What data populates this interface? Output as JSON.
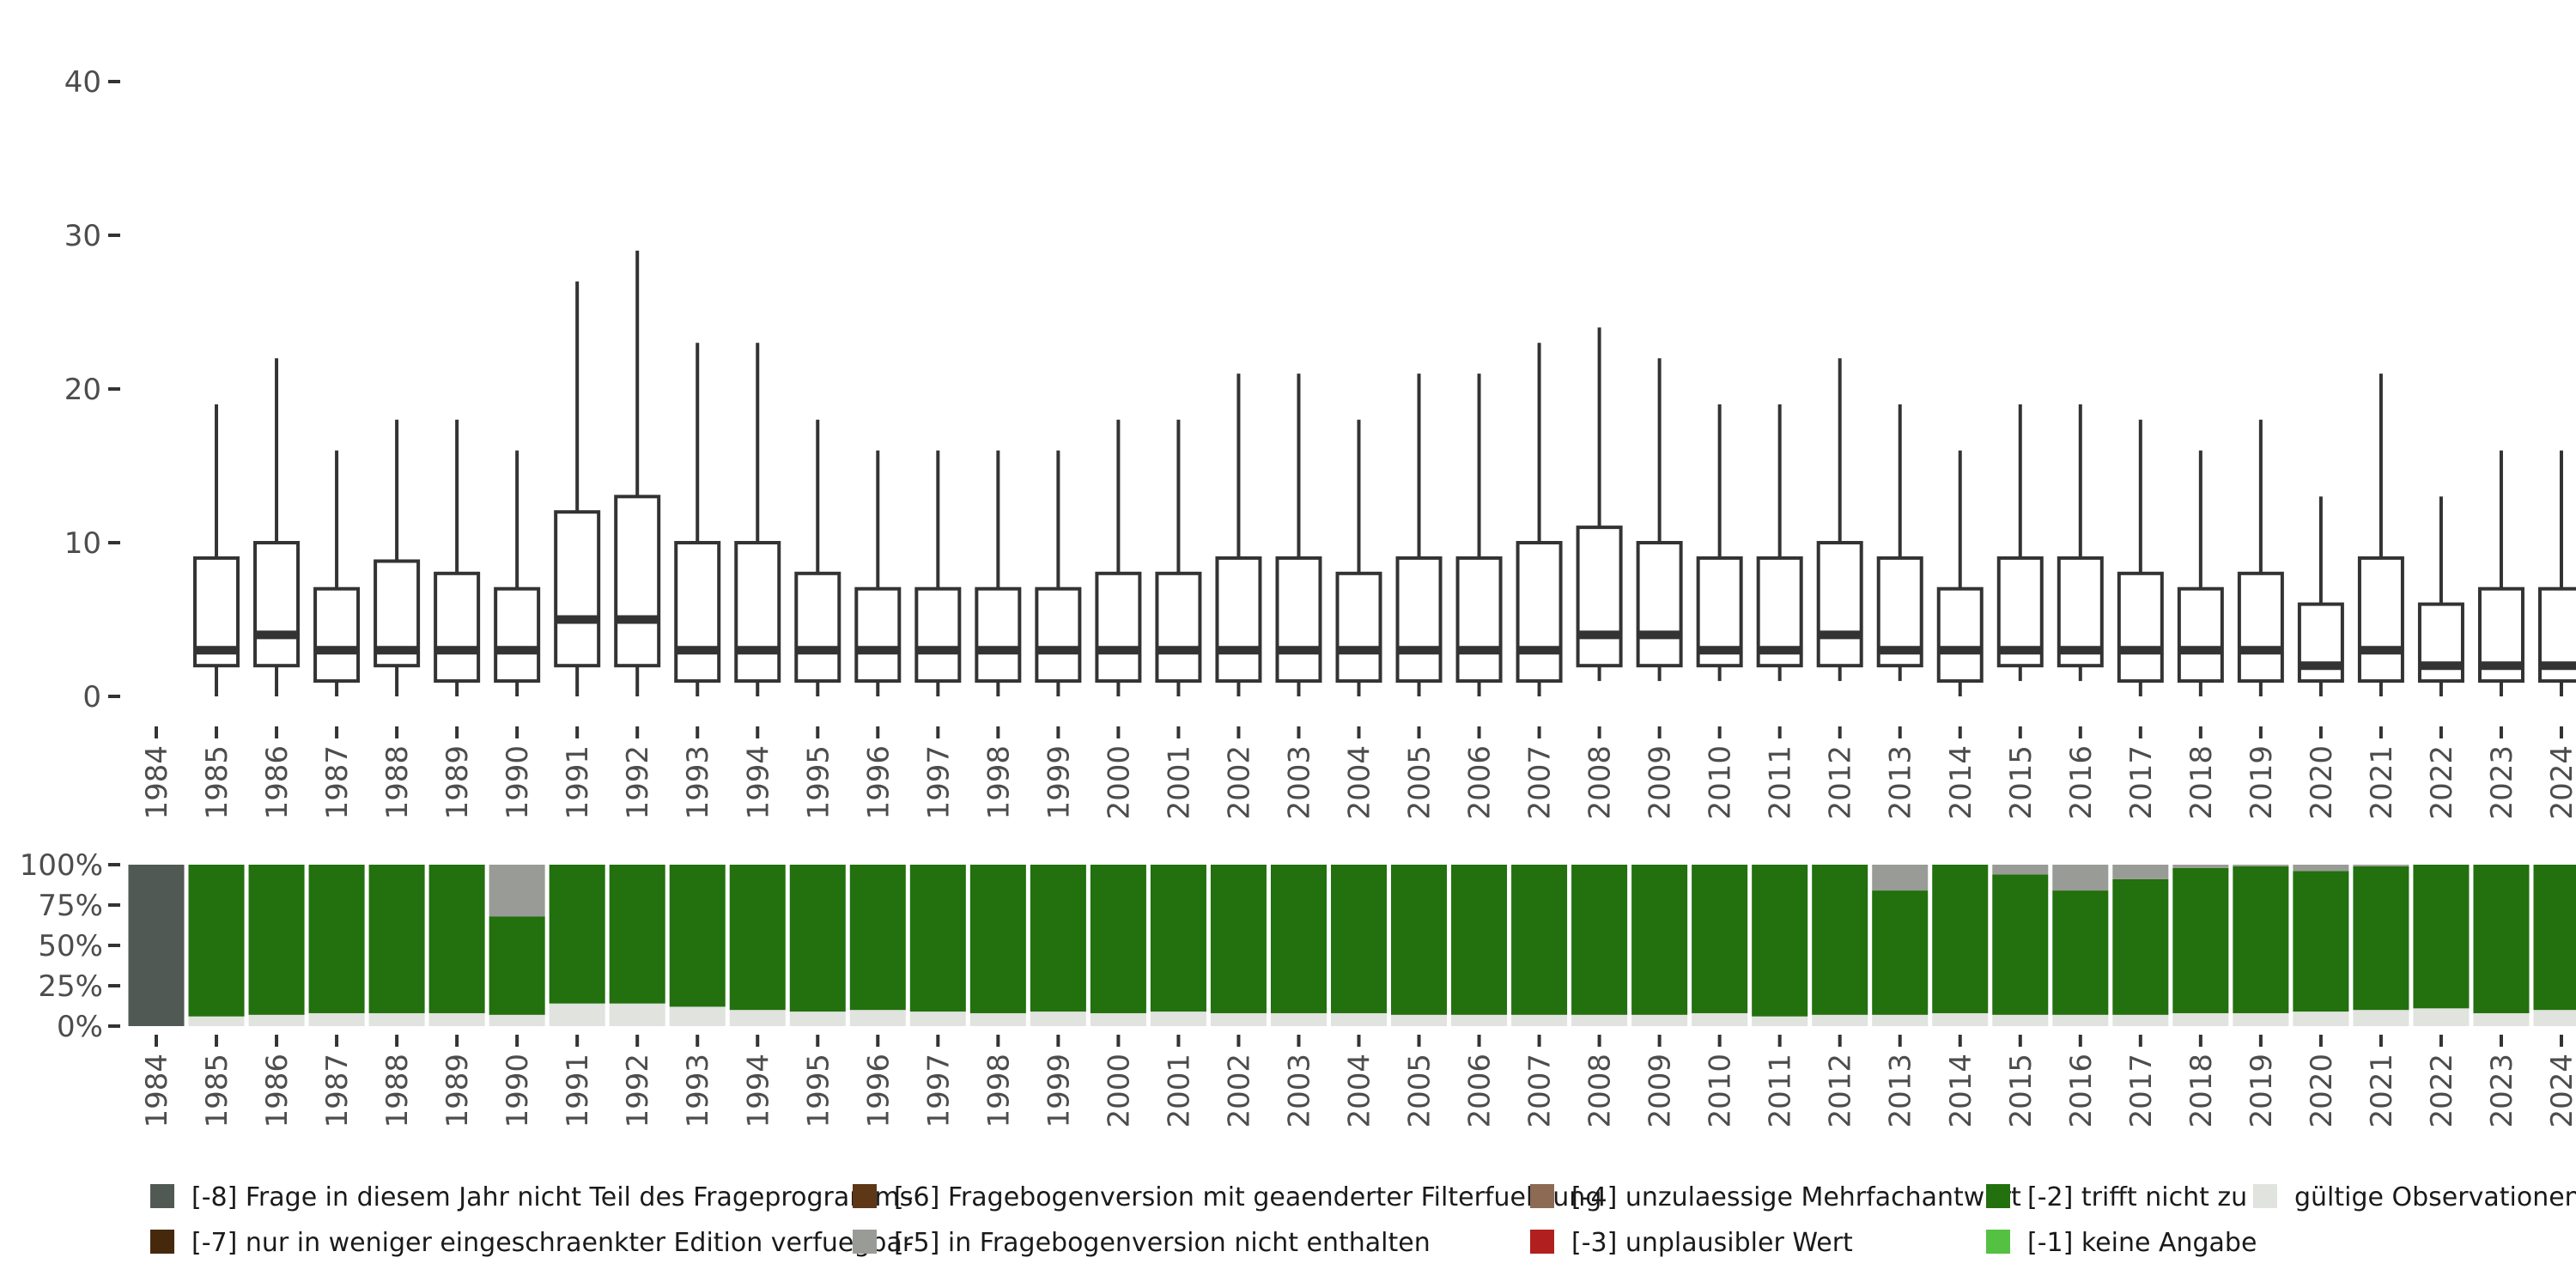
{
  "chart_data": [
    {
      "type": "boxplot",
      "ylim": [
        0,
        40
      ],
      "yticks": [
        0,
        10,
        20,
        30,
        40
      ],
      "categories": [
        "1984",
        "1985",
        "1986",
        "1987",
        "1988",
        "1989",
        "1990",
        "1991",
        "1992",
        "1993",
        "1994",
        "1995",
        "1996",
        "1997",
        "1998",
        "1999",
        "2000",
        "2001",
        "2002",
        "2003",
        "2004",
        "2005",
        "2006",
        "2007",
        "2008",
        "2009",
        "2010",
        "2011",
        "2012",
        "2013",
        "2014",
        "2015",
        "2016",
        "2017",
        "2018",
        "2019",
        "2020",
        "2021",
        "2022",
        "2023",
        "2024"
      ],
      "boxes": [
        null,
        {
          "min": 0,
          "q1": 2,
          "median": 3,
          "q3": 9,
          "max": 19
        },
        {
          "min": 0,
          "q1": 2,
          "median": 4,
          "q3": 10,
          "max": 22
        },
        {
          "min": 0,
          "q1": 1,
          "median": 3,
          "q3": 7,
          "max": 16
        },
        {
          "min": 0,
          "q1": 2,
          "median": 3,
          "q3": 8.8,
          "max": 18
        },
        {
          "min": 0,
          "q1": 1,
          "median": 3,
          "q3": 8,
          "max": 18
        },
        {
          "min": 0,
          "q1": 1,
          "median": 3,
          "q3": 7,
          "max": 16
        },
        {
          "min": 0,
          "q1": 2,
          "median": 5,
          "q3": 12,
          "max": 27
        },
        {
          "min": 0,
          "q1": 2,
          "median": 5,
          "q3": 13,
          "max": 29
        },
        {
          "min": 0,
          "q1": 1,
          "median": 3,
          "q3": 10,
          "max": 23
        },
        {
          "min": 0,
          "q1": 1,
          "median": 3,
          "q3": 10,
          "max": 23
        },
        {
          "min": 0,
          "q1": 1,
          "median": 3,
          "q3": 8,
          "max": 18
        },
        {
          "min": 0,
          "q1": 1,
          "median": 3,
          "q3": 7,
          "max": 16
        },
        {
          "min": 0,
          "q1": 1,
          "median": 3,
          "q3": 7,
          "max": 16
        },
        {
          "min": 0,
          "q1": 1,
          "median": 3,
          "q3": 7,
          "max": 16
        },
        {
          "min": 0,
          "q1": 1,
          "median": 3,
          "q3": 7,
          "max": 16
        },
        {
          "min": 0,
          "q1": 1,
          "median": 3,
          "q3": 8,
          "max": 18
        },
        {
          "min": 0,
          "q1": 1,
          "median": 3,
          "q3": 8,
          "max": 18
        },
        {
          "min": 0,
          "q1": 1,
          "median": 3,
          "q3": 9,
          "max": 21
        },
        {
          "min": 0,
          "q1": 1,
          "median": 3,
          "q3": 9,
          "max": 21
        },
        {
          "min": 0,
          "q1": 1,
          "median": 3,
          "q3": 8,
          "max": 18
        },
        {
          "min": 0,
          "q1": 1,
          "median": 3,
          "q3": 9,
          "max": 21
        },
        {
          "min": 0,
          "q1": 1,
          "median": 3,
          "q3": 9,
          "max": 21
        },
        {
          "min": 0,
          "q1": 1,
          "median": 3,
          "q3": 10,
          "max": 23
        },
        {
          "min": 1,
          "q1": 2,
          "median": 4,
          "q3": 11,
          "max": 24
        },
        {
          "min": 1,
          "q1": 2,
          "median": 4,
          "q3": 10,
          "max": 22
        },
        {
          "min": 1,
          "q1": 2,
          "median": 3,
          "q3": 9,
          "max": 19
        },
        {
          "min": 1,
          "q1": 2,
          "median": 3,
          "q3": 9,
          "max": 19
        },
        {
          "min": 1,
          "q1": 2,
          "median": 4,
          "q3": 10,
          "max": 22
        },
        {
          "min": 1,
          "q1": 2,
          "median": 3,
          "q3": 9,
          "max": 19
        },
        {
          "min": 0,
          "q1": 1,
          "median": 3,
          "q3": 7,
          "max": 16
        },
        {
          "min": 1,
          "q1": 2,
          "median": 3,
          "q3": 9,
          "max": 19
        },
        {
          "min": 1,
          "q1": 2,
          "median": 3,
          "q3": 9,
          "max": 19
        },
        {
          "min": 0,
          "q1": 1,
          "median": 3,
          "q3": 8,
          "max": 18
        },
        {
          "min": 0,
          "q1": 1,
          "median": 3,
          "q3": 7,
          "max": 16
        },
        {
          "min": 0,
          "q1": 1,
          "median": 3,
          "q3": 8,
          "max": 18
        },
        {
          "min": 0,
          "q1": 1,
          "median": 2,
          "q3": 6,
          "max": 13
        },
        {
          "min": 0,
          "q1": 1,
          "median": 3,
          "q3": 9,
          "max": 21
        },
        {
          "min": 0,
          "q1": 1,
          "median": 2,
          "q3": 6,
          "max": 13
        },
        {
          "min": 0,
          "q1": 1,
          "median": 2,
          "q3": 7,
          "max": 16
        },
        {
          "min": 0,
          "q1": 1,
          "median": 2,
          "q3": 7,
          "max": 16
        }
      ]
    },
    {
      "type": "stacked_bar_percent",
      "yticks": [
        "0%",
        "25%",
        "50%",
        "75%",
        "100%"
      ],
      "categories": [
        "1984",
        "1985",
        "1986",
        "1987",
        "1988",
        "1989",
        "1990",
        "1991",
        "1992",
        "1993",
        "1994",
        "1995",
        "1996",
        "1997",
        "1998",
        "1999",
        "2000",
        "2001",
        "2002",
        "2003",
        "2004",
        "2005",
        "2006",
        "2007",
        "2008",
        "2009",
        "2010",
        "2011",
        "2012",
        "2013",
        "2014",
        "2015",
        "2016",
        "2017",
        "2018",
        "2019",
        "2020",
        "2021",
        "2022",
        "2023",
        "2024"
      ],
      "series": [
        {
          "key": "valid",
          "name": "gültige Observationen",
          "color": "#e0e3de",
          "values": [
            0,
            6,
            7,
            8,
            8,
            8,
            7,
            14,
            14,
            12,
            10,
            9,
            10,
            9,
            8,
            9,
            8,
            9,
            8,
            8,
            8,
            7,
            7,
            7,
            7,
            7,
            8,
            6,
            7,
            7,
            8,
            7,
            7,
            7,
            8,
            8,
            9,
            10,
            11,
            8,
            10
          ]
        },
        {
          "key": "m2",
          "name": "[-2] trifft nicht zu",
          "color": "#22700e",
          "values": [
            0,
            94,
            93,
            92,
            92,
            92,
            61,
            86,
            86,
            88,
            90,
            91,
            90,
            91,
            92,
            91,
            92,
            91,
            92,
            92,
            92,
            93,
            93,
            93,
            93,
            93,
            92,
            94,
            93,
            77,
            92,
            87,
            77,
            84,
            90,
            91,
            87,
            89,
            89,
            92,
            90
          ]
        },
        {
          "key": "m5",
          "name": "[-5] in Fragebogenversion nicht enthalten",
          "color": "#999c96",
          "values": [
            0,
            0,
            0,
            0,
            0,
            0,
            32,
            0,
            0,
            0,
            0,
            0,
            0,
            0,
            0,
            0,
            0,
            0,
            0,
            0,
            0,
            0,
            0,
            0,
            0,
            0,
            0,
            0,
            0,
            16,
            0,
            6,
            16,
            9,
            2,
            1,
            4,
            1,
            0,
            0,
            0
          ]
        },
        {
          "key": "m8",
          "name": "[-8] Frage in diesem Jahr nicht Teil des Frageprogramms",
          "color": "#515954",
          "values": [
            100,
            0,
            0,
            0,
            0,
            0,
            0,
            0,
            0,
            0,
            0,
            0,
            0,
            0,
            0,
            0,
            0,
            0,
            0,
            0,
            0,
            0,
            0,
            0,
            0,
            0,
            0,
            0,
            0,
            0,
            0,
            0,
            0,
            0,
            0,
            0,
            0,
            0,
            0,
            0,
            0
          ]
        }
      ]
    }
  ],
  "legend": [
    {
      "label": "[-8] Frage in diesem Jahr nicht Teil des Frageprogramms",
      "color": "#515954"
    },
    {
      "label": "[-6] Fragebogenversion mit geaenderter Filterfuehrung",
      "color": "#5e3716"
    },
    {
      "label": "[-4] unzulaessige Mehrfachantwort",
      "color": "#8c6a54"
    },
    {
      "label": "[-2] trifft nicht zu",
      "color": "#22700e"
    },
    {
      "label": "gültige Observationen",
      "color": "#e0e3de"
    },
    {
      "label": "[-7] nur in weniger eingeschraenkter Edition verfuegbar",
      "color": "#46290c"
    },
    {
      "label": "[-5] in Fragebogenversion nicht enthalten",
      "color": "#999c96"
    },
    {
      "label": "[-3] unplausibler Wert",
      "color": "#b21f1f"
    },
    {
      "label": "[-1] keine Angabe",
      "color": "#55c142"
    }
  ]
}
